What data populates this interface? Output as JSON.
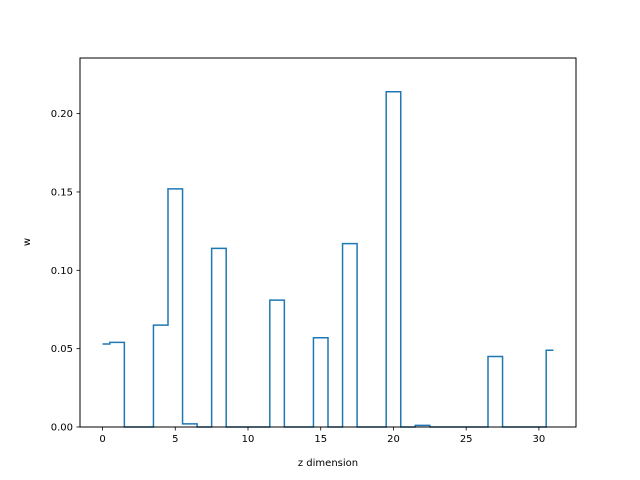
{
  "chart_data": {
    "type": "line",
    "drawstyle": "steps-mid",
    "title": "",
    "xlabel": "z dimension",
    "ylabel": "w",
    "xlim": [
      -1.55,
      32.55
    ],
    "ylim": [
      0,
      0.2355
    ],
    "xticks": [
      0,
      5,
      10,
      15,
      20,
      25,
      30
    ],
    "yticks": [
      0.0,
      0.05,
      0.1,
      0.15,
      0.2
    ],
    "ytick_labels": [
      "0.00",
      "0.05",
      "0.10",
      "0.15",
      "0.20"
    ],
    "grid": false,
    "line_color": "#1f77b4",
    "series": [
      {
        "x": [
          0,
          1,
          2,
          3,
          4,
          5,
          6,
          7,
          8,
          9,
          10,
          11,
          12,
          13,
          14,
          15,
          16,
          17,
          18,
          19,
          20,
          21,
          22,
          23,
          24,
          25,
          26,
          27,
          28,
          29,
          30,
          31
        ],
        "values": [
          0.053,
          0.054,
          0.0,
          0.0,
          0.065,
          0.152,
          0.002,
          0.0,
          0.114,
          0.0,
          0.0,
          0.0,
          0.081,
          0.0,
          0.0,
          0.057,
          0.0,
          0.117,
          0.0,
          0.0,
          0.214,
          0.0,
          0.001,
          0.0,
          0.0,
          0.0,
          0.0,
          0.045,
          0.0,
          0.0,
          0.0,
          0.049
        ]
      }
    ]
  }
}
